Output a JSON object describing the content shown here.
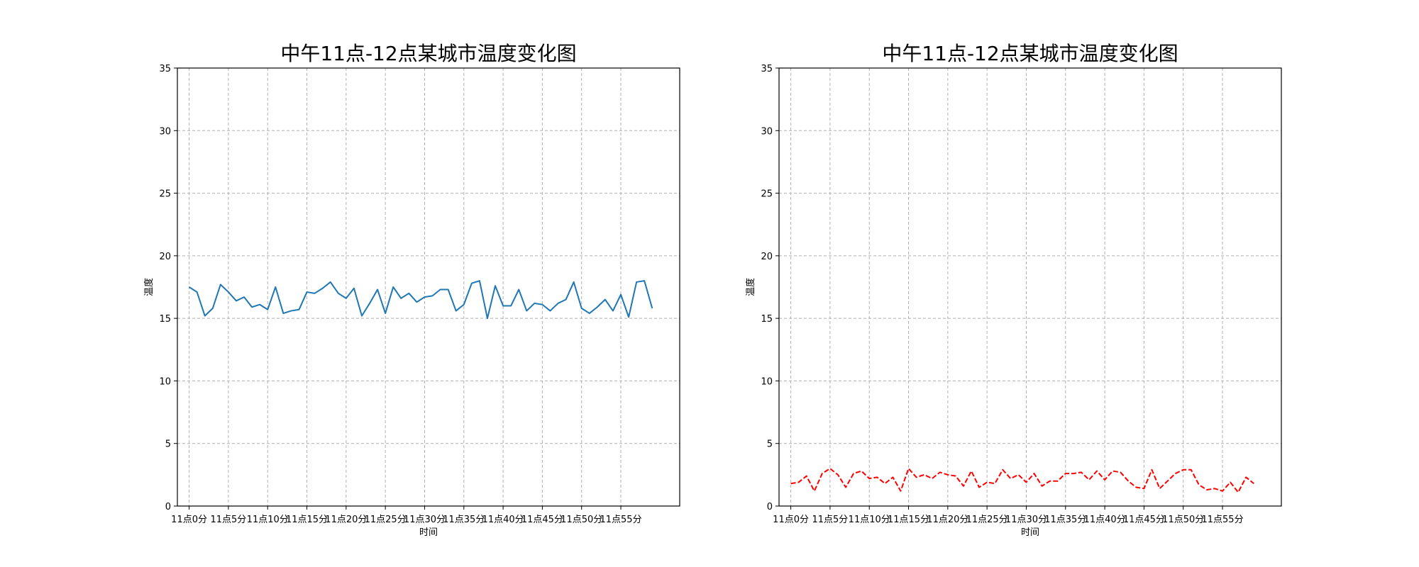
{
  "chart_data": [
    {
      "type": "line",
      "title": "中午11点-12点某城市温度变化图",
      "xlabel": "时间",
      "ylabel": "温度",
      "ylim": [
        0,
        35
      ],
      "yticks": [
        0,
        5,
        10,
        15,
        20,
        25,
        30,
        35
      ],
      "xlim": [
        -1.5,
        62.5
      ],
      "xtick_positions": [
        0,
        5,
        10,
        15,
        20,
        25,
        30,
        35,
        40,
        45,
        50,
        55
      ],
      "xtick_labels": [
        "11点0分",
        "11点5分",
        "11点10分",
        "11点15分",
        "11点20分",
        "11点25分",
        "11点30分",
        "11点35分",
        "11点40分",
        "11点45分",
        "11点50分",
        "11点55分"
      ],
      "grid": true,
      "series": [
        {
          "color": "#1f77b4",
          "linestyle": "solid",
          "values": [
            17.5,
            17.1,
            15.2,
            15.8,
            17.7,
            17.1,
            16.4,
            16.7,
            15.9,
            16.1,
            15.7,
            17.5,
            15.4,
            15.6,
            15.7,
            17.1,
            17.0,
            17.4,
            17.9,
            17.0,
            16.6,
            17.4,
            15.2,
            16.2,
            17.3,
            15.4,
            17.5,
            16.6,
            17.0,
            16.3,
            16.7,
            16.8,
            17.3,
            17.3,
            15.6,
            16.1,
            17.8,
            18.0,
            15.0,
            17.6,
            16.0,
            16.0,
            17.3,
            15.6,
            16.2,
            16.1,
            15.6,
            16.2,
            16.5,
            17.9,
            15.8,
            15.4,
            15.9,
            16.5,
            15.6,
            16.9,
            15.1,
            17.9,
            18.0,
            15.8
          ]
        }
      ]
    },
    {
      "type": "line",
      "title": "中午11点-12点某城市温度变化图",
      "xlabel": "时间",
      "ylabel": "温度",
      "ylim": [
        0,
        35
      ],
      "yticks": [
        0,
        5,
        10,
        15,
        20,
        25,
        30,
        35
      ],
      "xlim": [
        -1.5,
        62.5
      ],
      "xtick_positions": [
        0,
        5,
        10,
        15,
        20,
        25,
        30,
        35,
        40,
        45,
        50,
        55
      ],
      "xtick_labels": [
        "11点0分",
        "11点5分",
        "11点10分",
        "11点15分",
        "11点20分",
        "11点25分",
        "11点30分",
        "11点35分",
        "11点40分",
        "11点45分",
        "11点50分",
        "11点55分"
      ],
      "grid": true,
      "series": [
        {
          "color": "#ff0000",
          "linestyle": "dashed",
          "values": [
            1.8,
            1.9,
            2.4,
            1.2,
            2.6,
            3.0,
            2.5,
            1.5,
            2.6,
            2.8,
            2.2,
            2.3,
            1.8,
            2.3,
            1.2,
            3.0,
            2.3,
            2.5,
            2.2,
            2.7,
            2.5,
            2.4,
            1.6,
            2.8,
            1.5,
            1.9,
            1.8,
            2.9,
            2.2,
            2.5,
            1.9,
            2.6,
            1.6,
            2.0,
            2.0,
            2.6,
            2.6,
            2.7,
            2.1,
            2.8,
            2.1,
            2.8,
            2.7,
            2.0,
            1.5,
            1.4,
            2.9,
            1.4,
            2.0,
            2.6,
            2.9,
            2.9,
            1.7,
            1.3,
            1.4,
            1.2,
            1.9,
            1.1,
            2.3,
            1.8
          ]
        }
      ]
    }
  ]
}
